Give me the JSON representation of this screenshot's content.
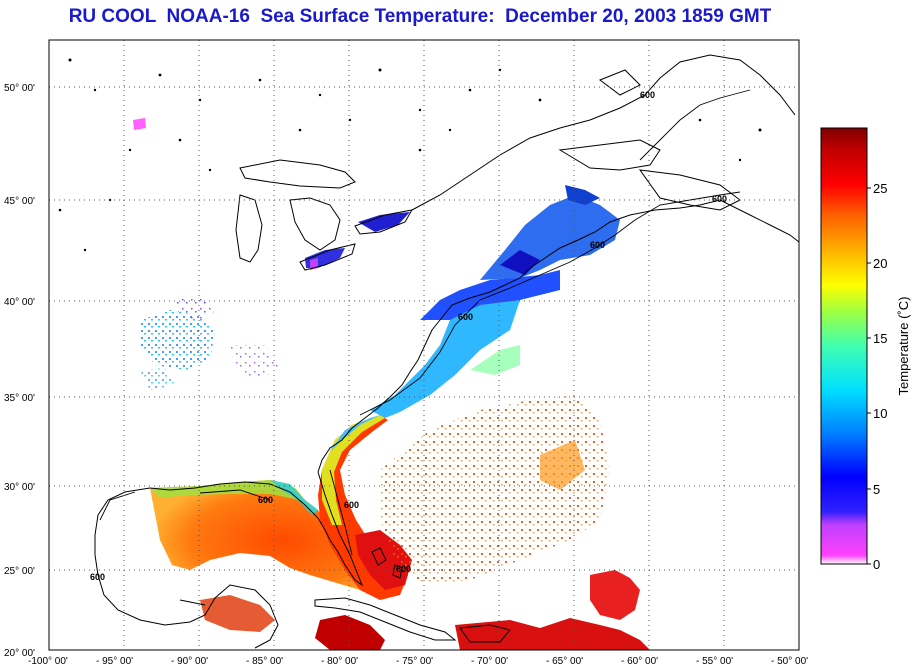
{
  "title": "RU COOL  NOAA-16  Sea Surface Temperature:  December 20, 2003 1859 GMT",
  "map": {
    "lon_ticks": [
      "-100° 00'",
      "- 95° 00'",
      "- 90° 00'",
      "- 85° 00'",
      "- 80° 00'",
      "- 75° 00'",
      "- 70° 00'",
      "- 65° 00'",
      "- 60° 00'",
      "- 55° 00'",
      "- 50° 00'"
    ],
    "lat_ticks": [
      "50° 00'",
      "45° 00'",
      "40° 00'",
      "35° 00'",
      "30° 00'",
      "25° 00'",
      "20° 00'"
    ],
    "isobath_label": "600",
    "grid": true
  },
  "colorbar": {
    "label": "Temperature (˚C)",
    "ticks": [
      "25",
      "20",
      "15",
      "10",
      "5",
      "0"
    ]
  }
}
